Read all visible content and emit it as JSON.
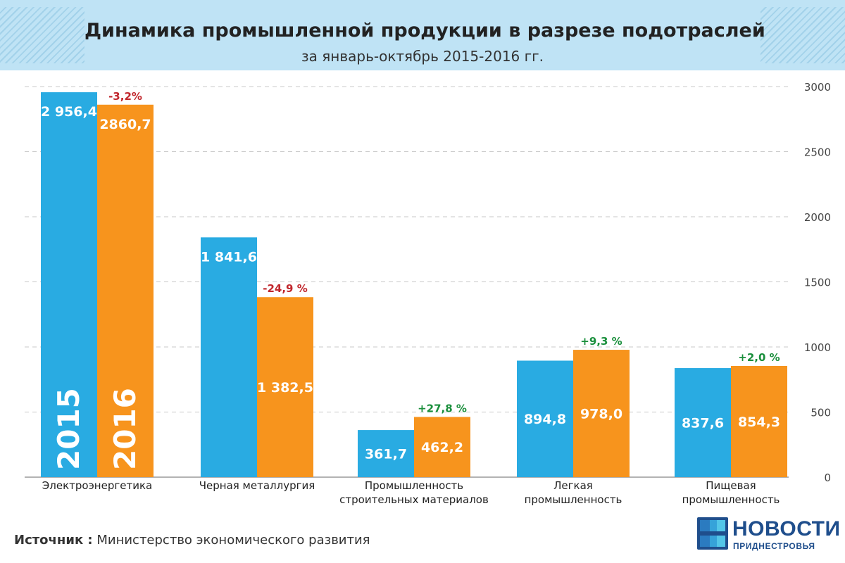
{
  "header": {
    "title": "Динамика промышленной продукции в разрезе подотраслей",
    "subtitle": "за январь-октябрь 2015-2016 гг."
  },
  "chart_data": {
    "type": "bar",
    "categories": [
      [
        "Электроэнергетика"
      ],
      [
        "Черная металлургия"
      ],
      [
        "Промышленность",
        "строительных материалов"
      ],
      [
        "Легкая",
        "промышленность"
      ],
      [
        "Пищевая",
        "промышленность"
      ]
    ],
    "series": [
      {
        "name": "2015",
        "values": [
          2956.4,
          1841.6,
          361.7,
          894.8,
          837.6
        ],
        "labels": [
          "2 956,4",
          "1 841,6",
          "361,7",
          "894,8",
          "837,6"
        ],
        "color": "#29abe2"
      },
      {
        "name": "2016",
        "values": [
          2860.7,
          1382.5,
          462.2,
          978.0,
          854.3
        ],
        "labels": [
          "2860,7",
          "1 382,5",
          "462,2",
          "978,0",
          "854,3"
        ],
        "color": "#f7941d"
      }
    ],
    "changes": [
      "-3,2%",
      "-24,9 %",
      "+27,8 %",
      "+9,3 %",
      "+2,0 %"
    ],
    "change_colors": [
      "#c1272d",
      "#c1272d",
      "#1a8f3c",
      "#1a8f3c",
      "#1a8f3c"
    ],
    "y_ticks": [
      0,
      500,
      1000,
      1500,
      2000,
      2500,
      3000
    ],
    "ylim": [
      0,
      3000
    ],
    "y_axis_side": "right",
    "grid": "dashed",
    "legend": "series names written inside first pair of bars"
  },
  "footer": {
    "source_label": "Источник :",
    "source_text": "Министерство экономического развития"
  },
  "logo": {
    "line1": "НОВОСТИ",
    "line2": "ПРИДНЕСТРОВЬЯ"
  }
}
